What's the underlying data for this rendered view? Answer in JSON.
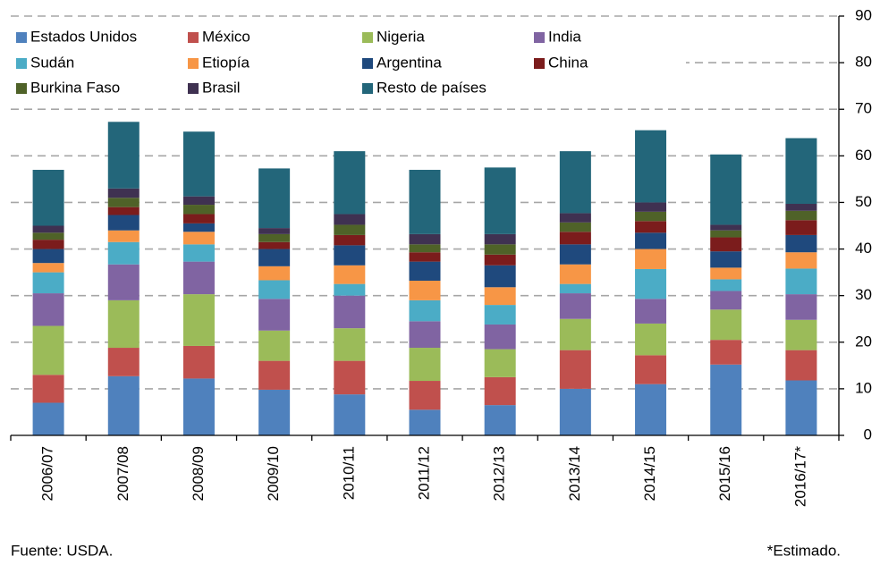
{
  "chart_data": {
    "type": "stacked_bar",
    "categories": [
      "2006/07",
      "2007/08",
      "2008/09",
      "2009/10",
      "2010/11",
      "2011/12",
      "2012/13",
      "2013/14",
      "2014/15",
      "2015/16",
      "2016/17*"
    ],
    "series": [
      {
        "name": "Estados Unidos",
        "color": "#4f81bd",
        "values": [
          7,
          12.7,
          12.2,
          9.8,
          8.8,
          5.5,
          6.5,
          10,
          11,
          15.2,
          11.8
        ]
      },
      {
        "name": "México",
        "color": "#c0504d",
        "values": [
          6,
          6.1,
          7,
          6.2,
          7.2,
          6.2,
          6,
          8.3,
          6.2,
          5.3,
          6.5
        ]
      },
      {
        "name": "Nigeria",
        "color": "#9bbb59",
        "values": [
          10.5,
          10.2,
          11.1,
          6.5,
          7,
          7.1,
          6,
          6.7,
          6.8,
          6.5,
          6.5
        ]
      },
      {
        "name": "India",
        "color": "#8064a2",
        "values": [
          7,
          7.7,
          7,
          6.8,
          7,
          5.7,
          5.3,
          5.5,
          5.3,
          4,
          5.5
        ]
      },
      {
        "name": "Sudán",
        "color": "#4bacc6",
        "values": [
          4.5,
          4.8,
          3.7,
          4,
          2.5,
          4.5,
          4.2,
          2,
          6.4,
          2.5,
          5.5
        ]
      },
      {
        "name": "Etiopía",
        "color": "#f79646",
        "values": [
          2,
          2.5,
          2.7,
          3,
          4,
          4.2,
          3.8,
          4.2,
          4.3,
          2.5,
          3.5
        ]
      },
      {
        "name": "Argentina",
        "color": "#1f497d",
        "values": [
          3,
          3.3,
          1.8,
          3.7,
          4.3,
          4.1,
          4.7,
          4.3,
          3.5,
          3.5,
          3.7
        ]
      },
      {
        "name": "China",
        "color": "#7b1c1c",
        "values": [
          2,
          1.7,
          2,
          1.5,
          2.2,
          2,
          2.3,
          2.7,
          2.5,
          3,
          3.2
        ]
      },
      {
        "name": "Burkina Faso",
        "color": "#4f6228",
        "values": [
          1.5,
          2,
          2,
          1.7,
          2.2,
          1.7,
          2.2,
          2,
          2,
          1.5,
          2
        ]
      },
      {
        "name": "Brasil",
        "color": "#3f3151",
        "values": [
          1.5,
          2,
          1.8,
          1.3,
          2.3,
          2.2,
          2.2,
          2,
          2,
          1.2,
          1.5
        ]
      },
      {
        "name": "Resto de países",
        "color": "#23667a",
        "values": [
          12,
          14.3,
          13.9,
          12.8,
          13.5,
          13.8,
          14.3,
          13.3,
          15.5,
          15.1,
          14.1
        ]
      }
    ],
    "ylim": [
      0,
      90
    ],
    "yticks": [
      0,
      10,
      20,
      30,
      40,
      50,
      60,
      70,
      80,
      90
    ],
    "grid": true,
    "legend": "top-left",
    "source": "Fuente: USDA.",
    "note": "*Estimado."
  }
}
